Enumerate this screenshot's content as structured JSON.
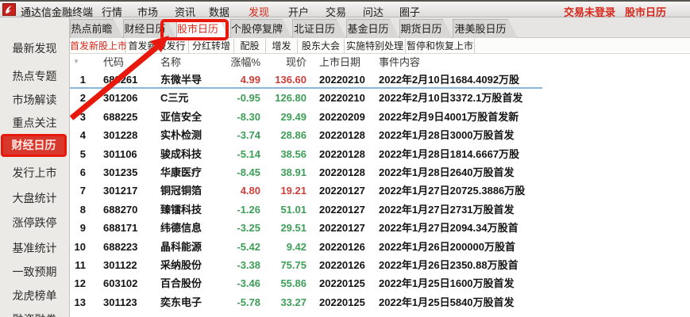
{
  "topbar": {
    "title": "通达信金融终端",
    "menu_items": [
      "行情",
      "市场",
      "资讯",
      "数据",
      "发现",
      "开户",
      "交易",
      "问达",
      "圈子"
    ],
    "active_menu": "发现",
    "status_right": [
      "交易未登录",
      "股市日历"
    ]
  },
  "sidebar": {
    "items": [
      "最新发现",
      "热点专题",
      "市场解读",
      "重点关注",
      "财经日历",
      "发行上市",
      "大盘统计",
      "涨停跌停",
      "基准统计",
      "一致预期",
      "龙虎榜单",
      "融资融券"
    ],
    "active": "财经日历"
  },
  "tabs": {
    "items": [
      "热点前瞻",
      "财经日历",
      "股市日历",
      "个股停复牌",
      "北证日历",
      "基金日历",
      "期货日历",
      "港美股日历"
    ],
    "active": "股市日历"
  },
  "subtabs": {
    "items": [
      "首发新股上市",
      "首发新股发行",
      "分红转增",
      "配股",
      "增发",
      "股东大会",
      "实施特别处理",
      "暂停和恢复上市"
    ],
    "active": "首发新股上市"
  },
  "table": {
    "sort_icon": "▼",
    "headers": [
      "代码",
      "名称",
      "涨幅%",
      "现价",
      "上市日期",
      "事件内容"
    ],
    "rows": [
      {
        "seq": "1",
        "code": "688261",
        "name": "东微半导",
        "change": "4.99",
        "price": "136.60",
        "date": "20220210",
        "event": "2022年2月10日1684.4092万股",
        "selected": true
      },
      {
        "seq": "2",
        "code": "301206",
        "name": "C三元",
        "change": "-0.95",
        "price": "126.80",
        "date": "20220210",
        "event": "2022年2月10日3372.1万股首发"
      },
      {
        "seq": "3",
        "code": "688225",
        "name": "亚信安全",
        "change": "-8.30",
        "price": "29.49",
        "date": "20220209",
        "event": "2022年2月9日4001万股首发新"
      },
      {
        "seq": "4",
        "code": "301228",
        "name": "实朴检测",
        "change": "-3.74",
        "price": "28.86",
        "date": "20220128",
        "event": "2022年1月28日3000万股首发"
      },
      {
        "seq": "5",
        "code": "301106",
        "name": "骏成科技",
        "change": "-5.14",
        "price": "38.56",
        "date": "20220128",
        "event": "2022年1月28日1814.6667万股"
      },
      {
        "seq": "6",
        "code": "301235",
        "name": "华康医疗",
        "change": "-8.45",
        "price": "38.91",
        "date": "20220128",
        "event": "2022年1月28日2640万股首发"
      },
      {
        "seq": "7",
        "code": "301217",
        "name": "铜冠铜箔",
        "change": "4.80",
        "price": "19.21",
        "date": "20220127",
        "event": "2022年1月27日20725.3886万股"
      },
      {
        "seq": "8",
        "code": "688270",
        "name": "臻镭科技",
        "change": "-1.26",
        "price": "51.01",
        "date": "20220127",
        "event": "2022年1月27日2731万股首发"
      },
      {
        "seq": "9",
        "code": "688171",
        "name": "纬德信息",
        "change": "-3.25",
        "price": "29.51",
        "date": "20220127",
        "event": "2022年1月27日2094.34万股首"
      },
      {
        "seq": "10",
        "code": "688223",
        "name": "晶科能源",
        "change": "-5.42",
        "price": "9.42",
        "date": "20220126",
        "event": "2022年1月26日200000万股首"
      },
      {
        "seq": "11",
        "code": "301122",
        "name": "采纳股份",
        "change": "-3.38",
        "price": "75.75",
        "date": "20220126",
        "event": "2022年1月26日2350.88万股首"
      },
      {
        "seq": "12",
        "code": "603102",
        "name": "百合股份",
        "change": "-3.46",
        "price": "55.86",
        "date": "20220125",
        "event": "2022年1月25日1600万股首发"
      },
      {
        "seq": "13",
        "code": "301123",
        "name": "奕东电子",
        "change": "-5.78",
        "price": "33.27",
        "date": "20220125",
        "event": "2022年1月25日5840万股首发"
      },
      {
        "seq": "14",
        "code": "",
        "name": "",
        "change": "",
        "price": "",
        "date": "",
        "event": ""
      }
    ]
  },
  "colors": {
    "up_red": "#cf3f3a",
    "down_green": "#3d9e57",
    "accent_red": "#d8281c",
    "annotation_red": "#e8190c",
    "selection_blue": "#8ab6d9"
  }
}
